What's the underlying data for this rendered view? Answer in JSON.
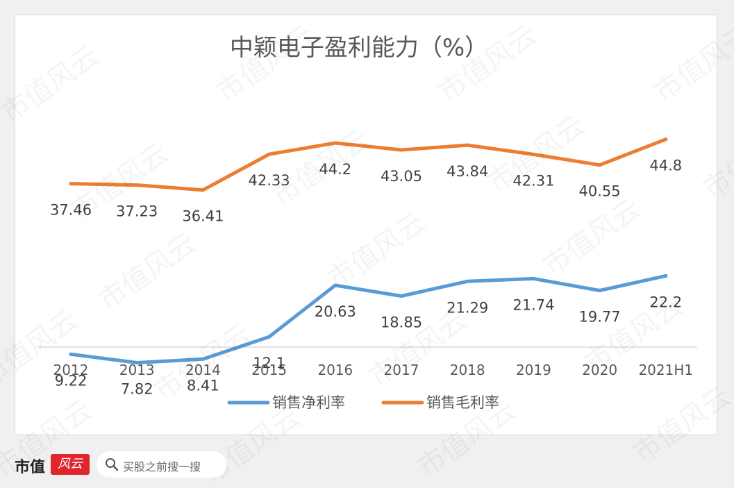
{
  "chart_data": {
    "type": "line",
    "title": "中颖电子盈利能力（%）",
    "categories": [
      "2012",
      "2013",
      "2014",
      "2015",
      "2016",
      "2017",
      "2018",
      "2019",
      "2020",
      "2021H1"
    ],
    "series": [
      {
        "name": "销售净利率",
        "color": "#5b9bd5",
        "values": [
          9.22,
          7.82,
          8.41,
          12.1,
          20.63,
          18.85,
          21.29,
          21.74,
          19.77,
          22.2
        ],
        "labels": [
          "9.22",
          "7.82",
          "8.41",
          "12.1",
          "20.63",
          "18.85",
          "21.29",
          "21.74",
          "19.77",
          "22.2"
        ]
      },
      {
        "name": "销售毛利率",
        "color": "#ed7d31",
        "values": [
          37.46,
          37.23,
          36.41,
          42.33,
          44.2,
          43.05,
          43.84,
          42.31,
          40.55,
          44.8
        ],
        "labels": [
          "37.46",
          "37.23",
          "36.41",
          "42.33",
          "44.2",
          "43.05",
          "43.84",
          "42.31",
          "40.55",
          "44.8"
        ]
      }
    ],
    "legend": "bottom",
    "grid": false
  },
  "watermark": "市值风云",
  "footer": {
    "logo_text": "市值",
    "logo_seal_text": "风云",
    "search_text": "买股之前搜一搜"
  }
}
